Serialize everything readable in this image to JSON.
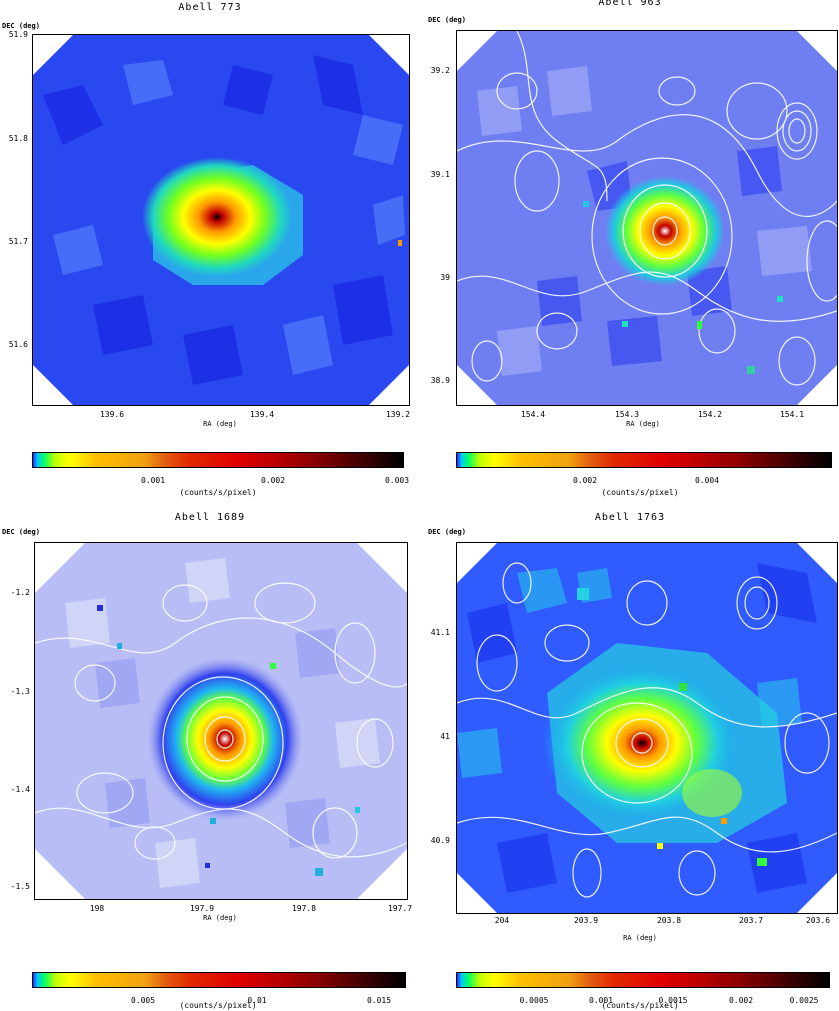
{
  "axis": {
    "dec_label": "DEC (deg)",
    "ra_label": "RA (deg)",
    "cbar_unit": "(counts/s/pixel)"
  },
  "panels": [
    {
      "title": "Abell 773",
      "yticks": [
        "51.9",
        "51.8",
        "51.7",
        "51.6"
      ],
      "xticks": [
        "139.6",
        "139.4",
        "139.2"
      ],
      "cticks": [
        "0.001",
        "0.002",
        "0.003"
      ],
      "contours": false,
      "bg": "#2a48f0"
    },
    {
      "title": "Abell 963",
      "yticks": [
        "39.2",
        "39.1",
        "39",
        "38.9"
      ],
      "xticks": [
        "154.4",
        "154.3",
        "154.2",
        "154.1"
      ],
      "cticks": [
        "0.002",
        "0.004"
      ],
      "contours": true,
      "bg": "#6f7ff2"
    },
    {
      "title": "Abell 1689",
      "yticks": [
        "-1.2",
        "-1.3",
        "-1.4",
        "-1.5"
      ],
      "xticks": [
        "198",
        "197.9",
        "197.8",
        "197.7"
      ],
      "cticks": [
        "0.005",
        "0.01",
        "0.015"
      ],
      "contours": true,
      "bg": "#b8bef5"
    },
    {
      "title": "Abell 1763",
      "yticks": [
        "41.1",
        "41",
        "40.9"
      ],
      "xticks": [
        "204",
        "203.9",
        "203.8",
        "203.7",
        "203.6"
      ],
      "cticks": [
        "0.0005",
        "0.001",
        "0.0015",
        "0.002",
        "0.0025"
      ],
      "contours": true,
      "bg": "#2f5bff"
    }
  ]
}
